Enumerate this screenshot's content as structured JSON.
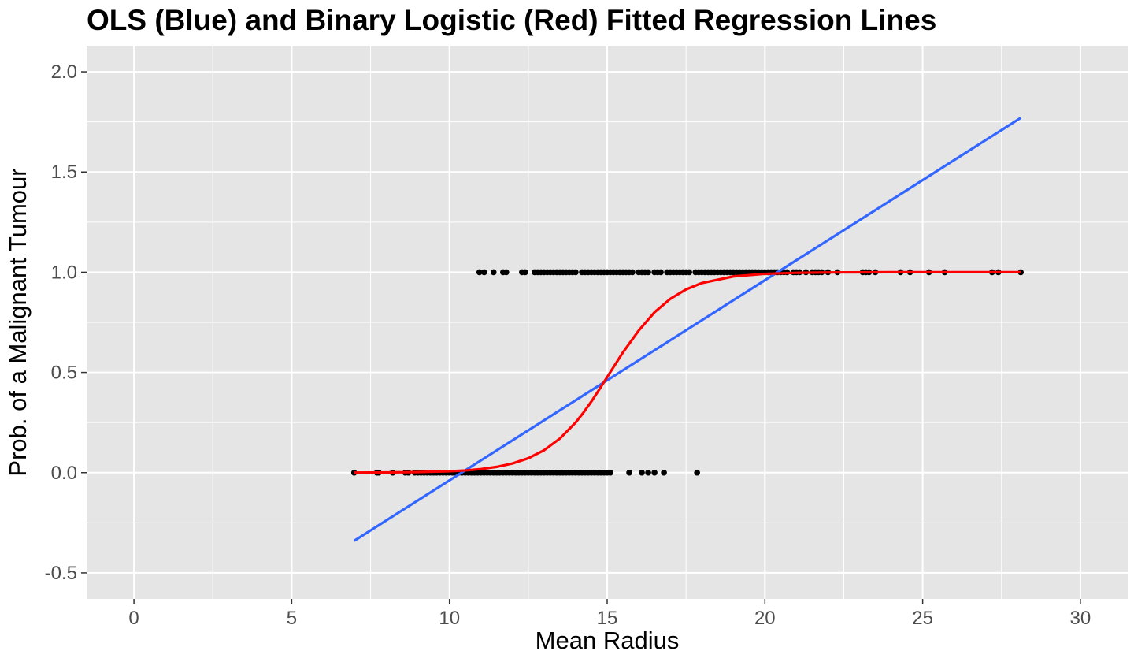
{
  "chart_data": {
    "type": "scatter",
    "title": "OLS (Blue) and Binary Logistic (Red) Fitted Regression Lines",
    "xlabel": "Mean Radius",
    "ylabel": "Prob. of a Malignant Tumour",
    "xlim": [
      -1.5,
      31.5
    ],
    "ylim": [
      -0.63,
      2.13
    ],
    "x_ticks": [
      0,
      5,
      10,
      15,
      20,
      25,
      30
    ],
    "x_tick_labels": [
      "0",
      "5",
      "10",
      "15",
      "20",
      "25",
      "30"
    ],
    "y_ticks": [
      -0.5,
      0.0,
      0.5,
      1.0,
      1.5,
      2.0
    ],
    "y_tick_labels": [
      "-0.5",
      "0.0",
      "0.5",
      "1.0",
      "1.5",
      "2.0"
    ],
    "grid": true,
    "background_color": "#e5e5e5",
    "grid_color": "#ffffff",
    "points": {
      "color": "#000000",
      "y0": [
        6.98,
        7.7,
        7.76,
        8.2,
        8.6,
        8.7,
        8.9,
        9.0,
        9.1,
        9.2,
        9.3,
        9.4,
        9.5,
        9.6,
        9.7,
        9.8,
        9.9,
        10.0,
        10.1,
        10.2,
        10.3,
        10.4,
        10.5,
        10.6,
        10.7,
        10.8,
        10.9,
        11.0,
        11.1,
        11.2,
        11.3,
        11.4,
        11.5,
        11.6,
        11.7,
        11.8,
        11.9,
        12.0,
        12.1,
        12.2,
        12.3,
        12.4,
        12.5,
        12.6,
        12.7,
        12.8,
        12.9,
        13.0,
        13.1,
        13.2,
        13.3,
        13.4,
        13.5,
        13.6,
        13.7,
        13.8,
        13.9,
        14.0,
        14.1,
        14.2,
        14.3,
        14.4,
        14.5,
        14.6,
        14.7,
        14.8,
        14.9,
        15.0,
        15.1,
        15.7,
        16.1,
        16.3,
        16.5,
        16.8,
        17.85
      ],
      "y1": [
        10.95,
        11.1,
        11.4,
        11.7,
        11.8,
        12.3,
        12.4,
        12.7,
        12.8,
        12.9,
        13.0,
        13.1,
        13.2,
        13.3,
        13.4,
        13.5,
        13.6,
        13.7,
        13.8,
        13.9,
        14.0,
        14.2,
        14.3,
        14.4,
        14.5,
        14.6,
        14.7,
        14.8,
        14.9,
        15.0,
        15.1,
        15.2,
        15.3,
        15.4,
        15.5,
        15.6,
        15.7,
        15.8,
        16.0,
        16.1,
        16.2,
        16.3,
        16.5,
        16.6,
        16.7,
        16.9,
        17.0,
        17.1,
        17.2,
        17.3,
        17.4,
        17.5,
        17.6,
        17.8,
        17.9,
        18.0,
        18.1,
        18.2,
        18.3,
        18.4,
        18.5,
        18.6,
        18.7,
        18.8,
        18.9,
        19.0,
        19.1,
        19.2,
        19.3,
        19.4,
        19.5,
        19.6,
        19.7,
        19.8,
        19.9,
        20.0,
        20.1,
        20.2,
        20.3,
        20.4,
        20.5,
        20.6,
        20.7,
        20.9,
        21.0,
        21.1,
        21.3,
        21.5,
        21.6,
        21.7,
        21.8,
        22.0,
        22.3,
        23.1,
        23.2,
        23.3,
        23.5,
        24.3,
        24.6,
        25.2,
        25.7,
        27.2,
        27.4,
        28.11
      ]
    },
    "series": [
      {
        "type": "line",
        "color": "#3366ff",
        "x": [
          6.98,
          28.11
        ],
        "y": [
          -0.34,
          1.77
        ]
      },
      {
        "type": "curve",
        "color": "#ff0000",
        "x": [
          6.98,
          8,
          9,
          10,
          10.5,
          11,
          11.5,
          12,
          12.5,
          13,
          13.5,
          14,
          14.25,
          14.5,
          14.75,
          15,
          15.5,
          16,
          16.5,
          17,
          17.5,
          18,
          19,
          20,
          21,
          22,
          24,
          26,
          28.11
        ],
        "y": [
          0.0,
          0.001,
          0.003,
          0.007,
          0.011,
          0.018,
          0.029,
          0.046,
          0.072,
          0.112,
          0.17,
          0.25,
          0.3,
          0.355,
          0.415,
          0.477,
          0.6,
          0.709,
          0.8,
          0.867,
          0.914,
          0.946,
          0.979,
          0.992,
          0.997,
          0.999,
          1.0,
          1.0,
          1.0
        ]
      }
    ]
  }
}
